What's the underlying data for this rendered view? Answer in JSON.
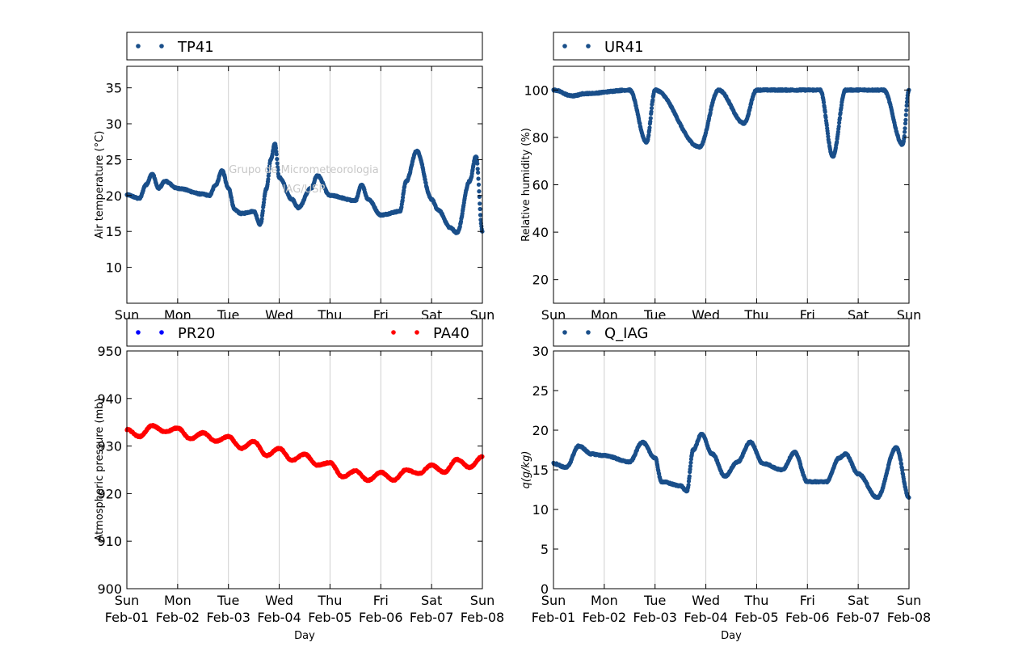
{
  "watermark": [
    "Grupo de Micrometeorologia",
    "IAG/USP"
  ],
  "x_ticks": [
    {
      "dow": "Sun",
      "date": "Feb-01"
    },
    {
      "dow": "Mon",
      "date": "Feb-02"
    },
    {
      "dow": "Tue",
      "date": "Feb-03"
    },
    {
      "dow": "Wed",
      "date": "Feb-04"
    },
    {
      "dow": "Thu",
      "date": "Feb-05"
    },
    {
      "dow": "Fri",
      "date": "Feb-06"
    },
    {
      "dow": "Sat",
      "date": "Feb-07"
    },
    {
      "dow": "Sun",
      "date": "Feb-08"
    }
  ],
  "colors": {
    "dark_blue": "#1a4f8a",
    "blue": "#0000ff",
    "red": "#ff0000",
    "grid": "#cfcfcf"
  },
  "chart_data": [
    {
      "type": "scatter",
      "xlabel": "Day",
      "ylabel": "Air temperature (°C)",
      "ylim": [
        5,
        38
      ],
      "yticks": [
        10,
        15,
        20,
        25,
        30,
        35
      ],
      "xlim": [
        "2015-02-01",
        "2015-02-08"
      ],
      "grid": "vertical",
      "legend": "top",
      "series": [
        {
          "name": "TP41",
          "color": "#1a4f8a",
          "points": [
            [
              "Feb-01 00:00",
              20.1
            ],
            [
              "Feb-01 06:00",
              19.6
            ],
            [
              "Feb-01 09:00",
              21.5
            ],
            [
              "Feb-01 12:00",
              23.0
            ],
            [
              "Feb-01 15:00",
              21.0
            ],
            [
              "Feb-01 18:00",
              22.0
            ],
            [
              "Feb-02 00:00",
              21.0
            ],
            [
              "Feb-02 12:00",
              20.2
            ],
            [
              "Feb-02 15:00",
              20.0
            ],
            [
              "Feb-02 18:00",
              21.5
            ],
            [
              "Feb-02 21:00",
              23.5
            ],
            [
              "Feb-03 00:00",
              21.0
            ],
            [
              "Feb-03 03:00",
              18.0
            ],
            [
              "Feb-03 06:00",
              17.5
            ],
            [
              "Feb-03 12:00",
              17.8
            ],
            [
              "Feb-03 15:00",
              16.0
            ],
            [
              "Feb-03 18:00",
              21.0
            ],
            [
              "Feb-03 20:00",
              25.0
            ],
            [
              "Feb-03 22:00",
              27.2
            ],
            [
              "Feb-04 00:00",
              22.5
            ],
            [
              "Feb-04 06:00",
              19.5
            ],
            [
              "Feb-04 09:00",
              18.3
            ],
            [
              "Feb-04 15:00",
              21.0
            ],
            [
              "Feb-04 18:00",
              22.8
            ],
            [
              "Feb-05 00:00",
              20.0
            ],
            [
              "Feb-05 12:00",
              19.3
            ],
            [
              "Feb-05 15:00",
              21.5
            ],
            [
              "Feb-05 18:00",
              19.5
            ],
            [
              "Feb-06 00:00",
              17.3
            ],
            [
              "Feb-06 09:00",
              17.8
            ],
            [
              "Feb-06 12:00",
              22.0
            ],
            [
              "Feb-06 17:00",
              26.2
            ],
            [
              "Feb-07 00:00",
              19.5
            ],
            [
              "Feb-07 03:00",
              18.0
            ],
            [
              "Feb-07 09:00",
              15.5
            ],
            [
              "Feb-07 12:00",
              14.8
            ],
            [
              "Feb-07 18:00",
              22.0
            ],
            [
              "Feb-07 21:00",
              25.5
            ],
            [
              "Feb-08 00:00",
              15.0
            ]
          ]
        }
      ]
    },
    {
      "type": "scatter",
      "xlabel": "Day",
      "ylabel": "Relative humidity (%)",
      "ylim": [
        10,
        110
      ],
      "yticks": [
        20,
        40,
        60,
        80,
        100
      ],
      "xlim": [
        "2015-02-01",
        "2015-02-08"
      ],
      "grid": "vertical",
      "legend": "top",
      "series": [
        {
          "name": "UR41",
          "color": "#1a4f8a",
          "points": [
            [
              "Feb-01 00:00",
              100
            ],
            [
              "Feb-01 09:00",
              97.5
            ],
            [
              "Feb-01 15:00",
              98.5
            ],
            [
              "Feb-02 12:00",
              100
            ],
            [
              "Feb-02 20:00",
              78
            ],
            [
              "Feb-03 00:00",
              100
            ],
            [
              "Feb-03 21:00",
              76
            ],
            [
              "Feb-04 06:00",
              100
            ],
            [
              "Feb-04 18:00",
              86
            ],
            [
              "Feb-05 00:00",
              100
            ],
            [
              "Feb-06 06:00",
              100
            ],
            [
              "Feb-06 12:00",
              72
            ],
            [
              "Feb-06 18:00",
              100
            ],
            [
              "Feb-07 12:00",
              100
            ],
            [
              "Feb-07 21:00",
              77
            ],
            [
              "Feb-08 00:00",
              100
            ]
          ]
        }
      ]
    },
    {
      "type": "scatter",
      "xlabel": "Day",
      "ylabel": "Atmospheric pressure (mb)",
      "ylim": [
        900,
        950
      ],
      "yticks": [
        900,
        910,
        920,
        930,
        940,
        950
      ],
      "xlim": [
        "2015-02-01",
        "2015-02-08"
      ],
      "grid": "vertical",
      "legend": "top",
      "series": [
        {
          "name": "PR20",
          "color": "#0000ff",
          "points": []
        },
        {
          "name": "PA40",
          "color": "#ff0000",
          "points": [
            [
              "Feb-01 00:00",
              933.5
            ],
            [
              "Feb-01 06:00",
              932.0
            ],
            [
              "Feb-01 12:00",
              934.3
            ],
            [
              "Feb-01 18:00",
              933.0
            ],
            [
              "Feb-02 00:00",
              933.8
            ],
            [
              "Feb-02 06:00",
              931.5
            ],
            [
              "Feb-02 12:00",
              932.8
            ],
            [
              "Feb-02 18:00",
              931.0
            ],
            [
              "Feb-03 00:00",
              932.0
            ],
            [
              "Feb-03 06:00",
              929.5
            ],
            [
              "Feb-03 12:00",
              931.0
            ],
            [
              "Feb-03 18:00",
              928.0
            ],
            [
              "Feb-04 00:00",
              929.5
            ],
            [
              "Feb-04 06:00",
              927.0
            ],
            [
              "Feb-04 12:00",
              928.3
            ],
            [
              "Feb-04 18:00",
              926.0
            ],
            [
              "Feb-05 00:00",
              926.5
            ],
            [
              "Feb-05 06:00",
              923.5
            ],
            [
              "Feb-05 12:00",
              924.8
            ],
            [
              "Feb-05 18:00",
              922.8
            ],
            [
              "Feb-06 00:00",
              924.5
            ],
            [
              "Feb-06 06:00",
              922.8
            ],
            [
              "Feb-06 12:00",
              925.0
            ],
            [
              "Feb-06 18:00",
              924.2
            ],
            [
              "Feb-07 00:00",
              926.0
            ],
            [
              "Feb-07 06:00",
              924.5
            ],
            [
              "Feb-07 12:00",
              927.2
            ],
            [
              "Feb-07 18:00",
              925.5
            ],
            [
              "Feb-08 00:00",
              927.8
            ]
          ]
        }
      ]
    },
    {
      "type": "scatter",
      "xlabel": "Day",
      "ylabel": "q(g/kg)",
      "ylim": [
        0,
        30
      ],
      "yticks": [
        0,
        5,
        10,
        15,
        20,
        25,
        30
      ],
      "xlim": [
        "2015-02-01",
        "2015-02-08"
      ],
      "grid": "vertical",
      "legend": "top",
      "series": [
        {
          "name": "Q_IAG",
          "color": "#1a4f8a",
          "points": [
            [
              "Feb-01 00:00",
              15.8
            ],
            [
              "Feb-01 06:00",
              15.3
            ],
            [
              "Feb-01 12:00",
              18.0
            ],
            [
              "Feb-01 18:00",
              17.0
            ],
            [
              "Feb-02 00:00",
              16.8
            ],
            [
              "Feb-02 12:00",
              16.0
            ],
            [
              "Feb-02 18:00",
              18.5
            ],
            [
              "Feb-03 00:00",
              16.5
            ],
            [
              "Feb-03 03:00",
              13.5
            ],
            [
              "Feb-03 12:00",
              13.0
            ],
            [
              "Feb-03 15:00",
              12.3
            ],
            [
              "Feb-03 18:00",
              17.5
            ],
            [
              "Feb-03 22:00",
              19.5
            ],
            [
              "Feb-04 03:00",
              17.0
            ],
            [
              "Feb-04 09:00",
              14.2
            ],
            [
              "Feb-04 15:00",
              16.0
            ],
            [
              "Feb-04 21:00",
              18.5
            ],
            [
              "Feb-05 03:00",
              15.8
            ],
            [
              "Feb-05 12:00",
              15.0
            ],
            [
              "Feb-05 18:00",
              17.2
            ],
            [
              "Feb-06 00:00",
              13.5
            ],
            [
              "Feb-06 09:00",
              13.5
            ],
            [
              "Feb-06 15:00",
              16.5
            ],
            [
              "Feb-06 18:00",
              17.0
            ],
            [
              "Feb-07 00:00",
              14.5
            ],
            [
              "Feb-07 09:00",
              11.5
            ],
            [
              "Feb-07 18:00",
              17.8
            ],
            [
              "Feb-08 00:00",
              11.5
            ]
          ]
        }
      ]
    }
  ]
}
